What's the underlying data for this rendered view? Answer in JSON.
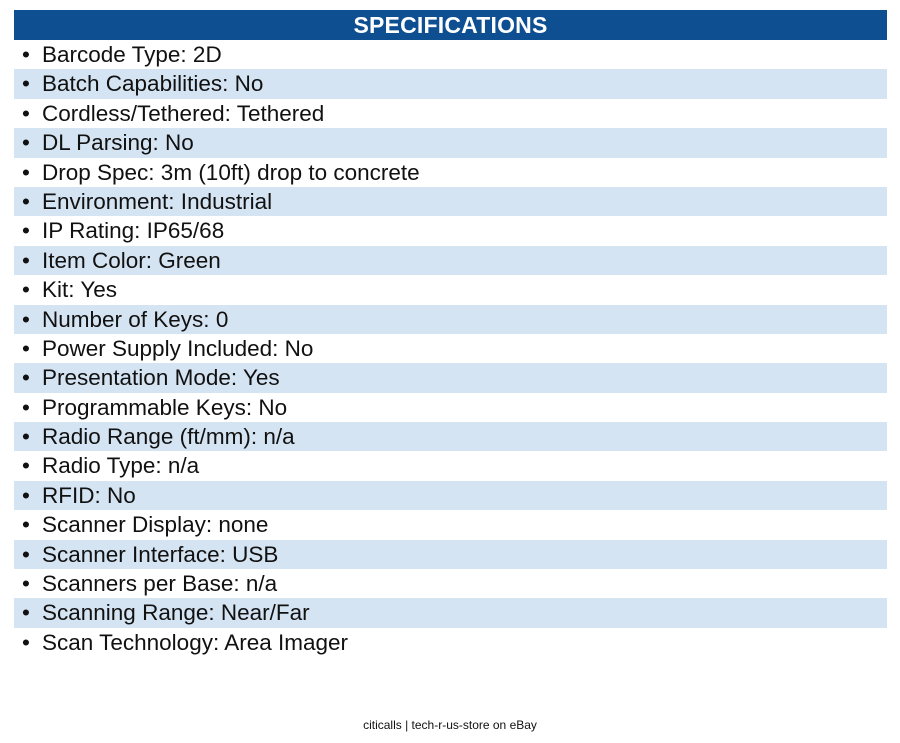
{
  "header": {
    "title": "SPECIFICATIONS"
  },
  "specs": [
    "Barcode Type: 2D",
    "Batch Capabilities: No",
    "Cordless/Tethered: Tethered",
    "DL Parsing: No",
    "Drop Spec: 3m (10ft) drop to concrete",
    "Environment: Industrial",
    "IP Rating: IP65/68",
    "Item Color: Green",
    "Kit: Yes",
    "Number of Keys: 0",
    "Power Supply Included: No",
    "Presentation Mode: Yes",
    "Programmable Keys: No",
    "Radio Range (ft/mm): n/a",
    "Radio Type: n/a",
    "RFID: No",
    "Scanner Display: none",
    "Scanner Interface: USB",
    "Scanners per Base: n/a",
    "Scanning Range: Near/Far",
    "Scan Technology: Area Imager"
  ],
  "footer": {
    "text": "citicalls | tech-r-us-store on eBay"
  },
  "colors": {
    "header_bg": "#0e4f91",
    "row_alt_bg": "#d5e4f2"
  }
}
